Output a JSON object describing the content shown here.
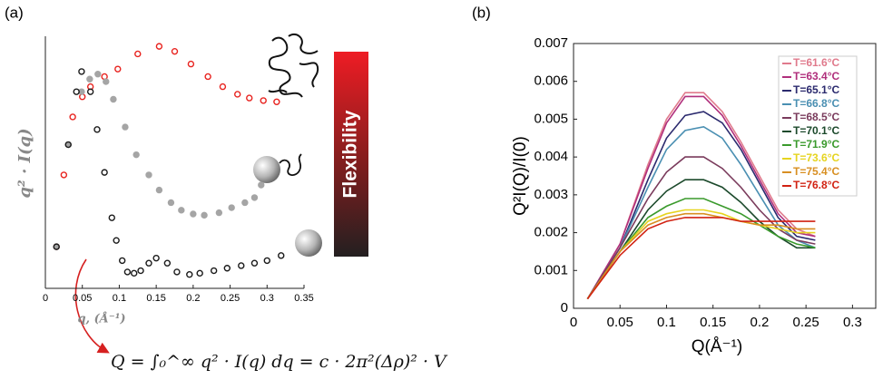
{
  "chart_data": [
    {
      "type": "scatter",
      "label": "(a)",
      "ylabel": "q² · I(q)",
      "xlabel": "q, (Å⁻¹)",
      "xlim": [
        0,
        0.35
      ],
      "ylim": [
        0,
        1
      ],
      "xticks": [
        0,
        0.05,
        0.1,
        0.15,
        0.2,
        0.25,
        0.3,
        0.35
      ],
      "annotations": [
        "Flexibility",
        "Q = ∫₀^∞ q² · I(q) dq = c · 2π²(Δρ)² · V"
      ],
      "series": [
        {
          "color": "#e8231f",
          "filled": false,
          "x": [
            0.015,
            0.025,
            0.037,
            0.05,
            0.061,
            0.08,
            0.098,
            0.125,
            0.154,
            0.175,
            0.197,
            0.22,
            0.24,
            0.26,
            0.276,
            0.295,
            0.313
          ],
          "values": [
            0.165,
            0.45,
            0.68,
            0.76,
            0.8,
            0.84,
            0.87,
            0.93,
            0.96,
            0.94,
            0.89,
            0.84,
            0.8,
            0.77,
            0.755,
            0.745,
            0.74
          ]
        },
        {
          "color": "#a5a5a5",
          "filled": true,
          "x": [
            0.015,
            0.031,
            0.049,
            0.06,
            0.071,
            0.082,
            0.092,
            0.108,
            0.123,
            0.14,
            0.154,
            0.17,
            0.184,
            0.2,
            0.215,
            0.235,
            0.252,
            0.27,
            0.283,
            0.292
          ],
          "values": [
            0.165,
            0.57,
            0.78,
            0.83,
            0.85,
            0.82,
            0.75,
            0.64,
            0.53,
            0.45,
            0.39,
            0.34,
            0.31,
            0.295,
            0.29,
            0.3,
            0.32,
            0.34,
            0.36,
            0.41
          ]
        },
        {
          "color": "#1a1a1a",
          "filled": false,
          "x": [
            0.015,
            0.031,
            0.042,
            0.049,
            0.061,
            0.07,
            0.08,
            0.09,
            0.096,
            0.104,
            0.111,
            0.12,
            0.129,
            0.14,
            0.15,
            0.165,
            0.178,
            0.195,
            0.209,
            0.228,
            0.246,
            0.265,
            0.283,
            0.3,
            0.319
          ],
          "values": [
            0.165,
            0.57,
            0.78,
            0.86,
            0.78,
            0.63,
            0.46,
            0.28,
            0.19,
            0.11,
            0.065,
            0.06,
            0.07,
            0.1,
            0.12,
            0.1,
            0.065,
            0.055,
            0.06,
            0.07,
            0.08,
            0.09,
            0.1,
            0.11,
            0.13
          ]
        }
      ]
    },
    {
      "type": "line",
      "label": "(b)",
      "ylabel": "Q²I(Q)/I(0)",
      "xlabel": "Q(Å⁻¹)",
      "xlim": [
        0,
        0.325
      ],
      "ylim": [
        0,
        0.007
      ],
      "xticks": [
        0,
        0.05,
        0.1,
        0.15,
        0.2,
        0.25,
        0.3
      ],
      "yticks": [
        0,
        0.001,
        0.002,
        0.003,
        0.004,
        0.005,
        0.006,
        0.007
      ],
      "x": [
        0.015,
        0.05,
        0.08,
        0.1,
        0.12,
        0.14,
        0.16,
        0.18,
        0.2,
        0.22,
        0.24,
        0.26
      ],
      "series": [
        {
          "name": "T=61.6°C",
          "color": "#e07a8c",
          "values": [
            0.00025,
            0.0017,
            0.0038,
            0.005,
            0.0057,
            0.0057,
            0.0052,
            0.0044,
            0.0035,
            0.0026,
            0.0021,
            0.0019
          ]
        },
        {
          "name": "T=63.4°C",
          "color": "#b02f7c",
          "values": [
            0.00025,
            0.0017,
            0.0037,
            0.0049,
            0.0056,
            0.0056,
            0.0051,
            0.0043,
            0.0034,
            0.0025,
            0.002,
            0.0019
          ]
        },
        {
          "name": "T=65.1°C",
          "color": "#2b2a6e",
          "values": [
            0.00025,
            0.0016,
            0.0034,
            0.0045,
            0.0051,
            0.0052,
            0.0049,
            0.0042,
            0.0033,
            0.0024,
            0.0019,
            0.0018
          ]
        },
        {
          "name": "T=66.8°C",
          "color": "#4a8fb2",
          "values": [
            0.00025,
            0.0016,
            0.0032,
            0.0042,
            0.0047,
            0.0048,
            0.0045,
            0.0038,
            0.003,
            0.0022,
            0.0018,
            0.0016
          ]
        },
        {
          "name": "T=68.5°C",
          "color": "#7a3b5c",
          "values": [
            0.00025,
            0.0016,
            0.0029,
            0.0036,
            0.004,
            0.004,
            0.0037,
            0.0032,
            0.0026,
            0.0021,
            0.0018,
            0.0017
          ]
        },
        {
          "name": "T=70.1°C",
          "color": "#1c4a2c",
          "values": [
            0.00025,
            0.0015,
            0.0026,
            0.0031,
            0.0034,
            0.0034,
            0.0032,
            0.0028,
            0.0023,
            0.0019,
            0.0016,
            0.0016
          ]
        },
        {
          "name": "T=71.9°C",
          "color": "#3a9a2c",
          "values": [
            0.00025,
            0.0015,
            0.0024,
            0.0027,
            0.0029,
            0.0029,
            0.0027,
            0.0025,
            0.0022,
            0.0019,
            0.0017,
            0.0016
          ]
        },
        {
          "name": "T=73.6°C",
          "color": "#e6d420",
          "values": [
            0.00025,
            0.0015,
            0.0023,
            0.0025,
            0.0026,
            0.0026,
            0.0025,
            0.0023,
            0.0022,
            0.0021,
            0.002,
            0.002
          ]
        },
        {
          "name": "T=75.4°C",
          "color": "#d88f22",
          "values": [
            0.00025,
            0.0015,
            0.0022,
            0.0024,
            0.0025,
            0.0025,
            0.0024,
            0.0023,
            0.0022,
            0.0022,
            0.0021,
            0.0021
          ]
        },
        {
          "name": "T=76.8°C",
          "color": "#d12212",
          "values": [
            0.00025,
            0.0014,
            0.0021,
            0.0023,
            0.0024,
            0.0024,
            0.0024,
            0.0023,
            0.0023,
            0.0023,
            0.0023,
            0.0023
          ]
        }
      ]
    }
  ]
}
